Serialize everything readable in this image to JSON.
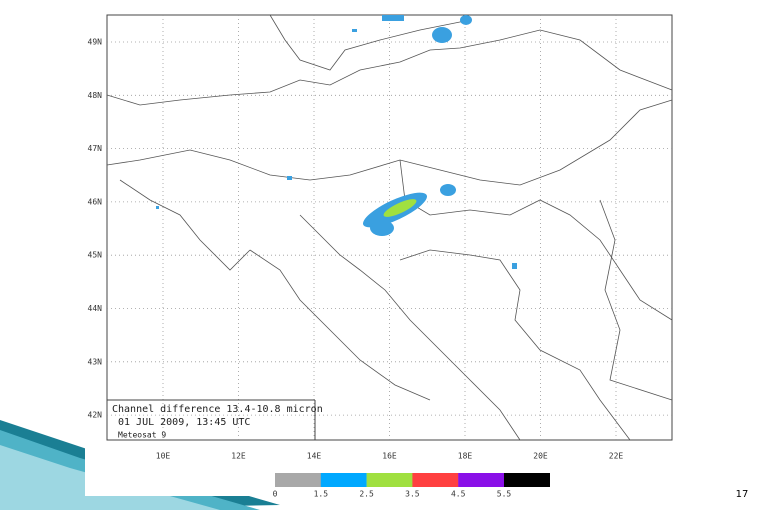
{
  "map": {
    "lat_labels": [
      "49N",
      "48N",
      "47N",
      "46N",
      "45N",
      "44N",
      "43N",
      "42N"
    ],
    "lon_labels": [
      "10E",
      "12E",
      "14E",
      "16E",
      "18E",
      "20E",
      "22E"
    ],
    "caption": [
      "Channel difference 13.4-10.8 micron",
      "01 JUL 2009, 13:45 UTC",
      "Meteosat 9"
    ],
    "colorbar": {
      "labels": [
        "0",
        "1.5",
        "2.5",
        "3.5",
        "4.5",
        "5.5"
      ],
      "colors": [
        "#a8a8a8",
        "#00a8ff",
        "#a0e040",
        "#ff4040",
        "#8a10e8",
        "#000000"
      ]
    }
  },
  "page_number": "17"
}
